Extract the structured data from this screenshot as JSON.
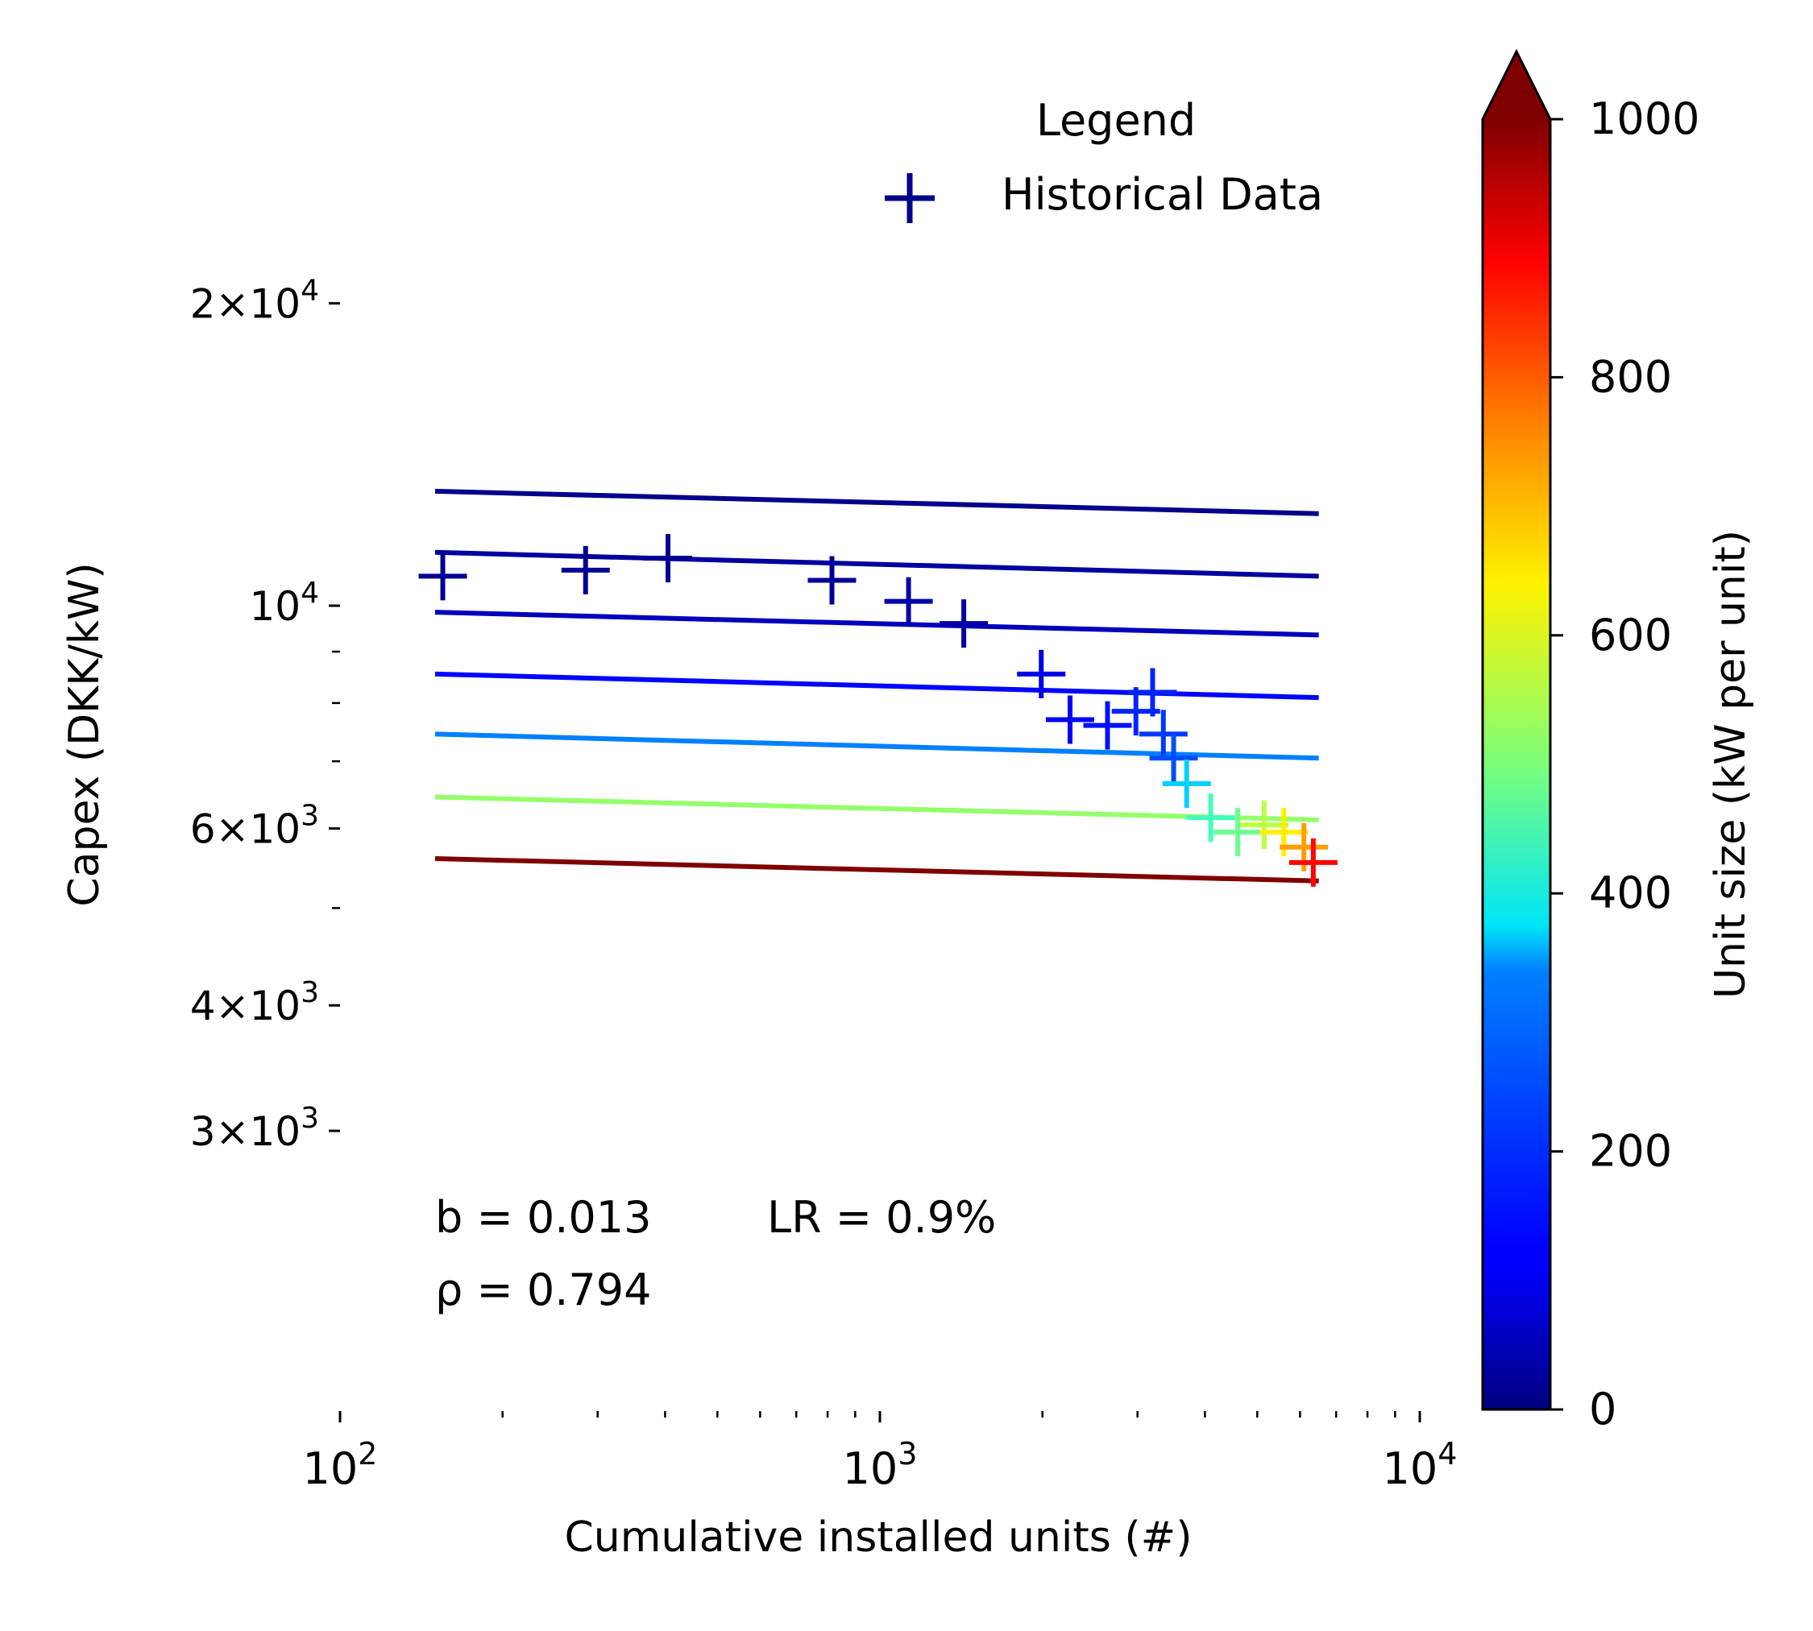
{
  "chart_data": {
    "type": "scatter",
    "title": "",
    "xlabel": "Cumulative installed units (#)",
    "ylabel": "Capex (DKK/kW)",
    "xscale": "log",
    "yscale": "log",
    "xlim": [
      100,
      10000
    ],
    "ylim": [
      2850,
      24000
    ],
    "x_tick_labels": [
      "10^2",
      "10^3",
      "10^4"
    ],
    "y_tick_labels": [
      "2×10^4",
      "10^4",
      "6×10^3",
      "4×10^3",
      "3×10^3"
    ],
    "legend": {
      "title": "Legend",
      "entries": [
        "Historical Data"
      ],
      "placement": "top-right"
    },
    "annotations": [
      "b = 0.013",
      "LR = 0.9%",
      "ρ = 0.794"
    ],
    "colorbar": {
      "label": "Unit size (kW per unit)",
      "range": [
        0,
        1000
      ],
      "ticks": [
        0,
        200,
        400,
        600,
        800,
        1000
      ],
      "colormap": "jet",
      "extend": "max"
    },
    "series": [
      {
        "name": "Historical Data",
        "marker": "+",
        "points": [
          {
            "x": 155,
            "y": 10700,
            "c": 20
          },
          {
            "x": 285,
            "y": 10850,
            "c": 20
          },
          {
            "x": 405,
            "y": 11150,
            "c": 20
          },
          {
            "x": 815,
            "y": 10600,
            "c": 25
          },
          {
            "x": 1130,
            "y": 10100,
            "c": 40
          },
          {
            "x": 1430,
            "y": 9600,
            "c": 40
          },
          {
            "x": 1990,
            "y": 8550,
            "c": 100
          },
          {
            "x": 2250,
            "y": 7700,
            "c": 120
          },
          {
            "x": 2640,
            "y": 7600,
            "c": 140
          },
          {
            "x": 2980,
            "y": 7850,
            "c": 160
          },
          {
            "x": 3200,
            "y": 8200,
            "c": 160
          },
          {
            "x": 3350,
            "y": 7450,
            "c": 180
          },
          {
            "x": 3500,
            "y": 7050,
            "c": 200
          },
          {
            "x": 3700,
            "y": 6650,
            "c": 330
          },
          {
            "x": 4100,
            "y": 6150,
            "c": 440
          },
          {
            "x": 4600,
            "y": 5950,
            "c": 480
          },
          {
            "x": 5150,
            "y": 6050,
            "c": 560
          },
          {
            "x": 5600,
            "y": 5950,
            "c": 640
          },
          {
            "x": 6100,
            "y": 5750,
            "c": 720
          },
          {
            "x": 6350,
            "y": 5550,
            "c": 870
          }
        ]
      }
    ],
    "fit_lines": [
      {
        "unit_size": 10,
        "x": [
          150,
          6500
        ],
        "y": [
          13000,
          12350
        ]
      },
      {
        "unit_size": 30,
        "x": [
          150,
          6500
        ],
        "y": [
          11300,
          10700
        ]
      },
      {
        "unit_size": 60,
        "x": [
          150,
          6500
        ],
        "y": [
          9850,
          9350
        ]
      },
      {
        "unit_size": 130,
        "x": [
          150,
          6500
        ],
        "y": [
          8550,
          8100
        ]
      },
      {
        "unit_size": 250,
        "x": [
          150,
          6500
        ],
        "y": [
          7450,
          7050
        ]
      },
      {
        "unit_size": 520,
        "x": [
          150,
          6500
        ],
        "y": [
          6450,
          6120
        ]
      },
      {
        "unit_size": 1000,
        "x": [
          150,
          6500
        ],
        "y": [
          5600,
          5320
        ]
      }
    ]
  }
}
